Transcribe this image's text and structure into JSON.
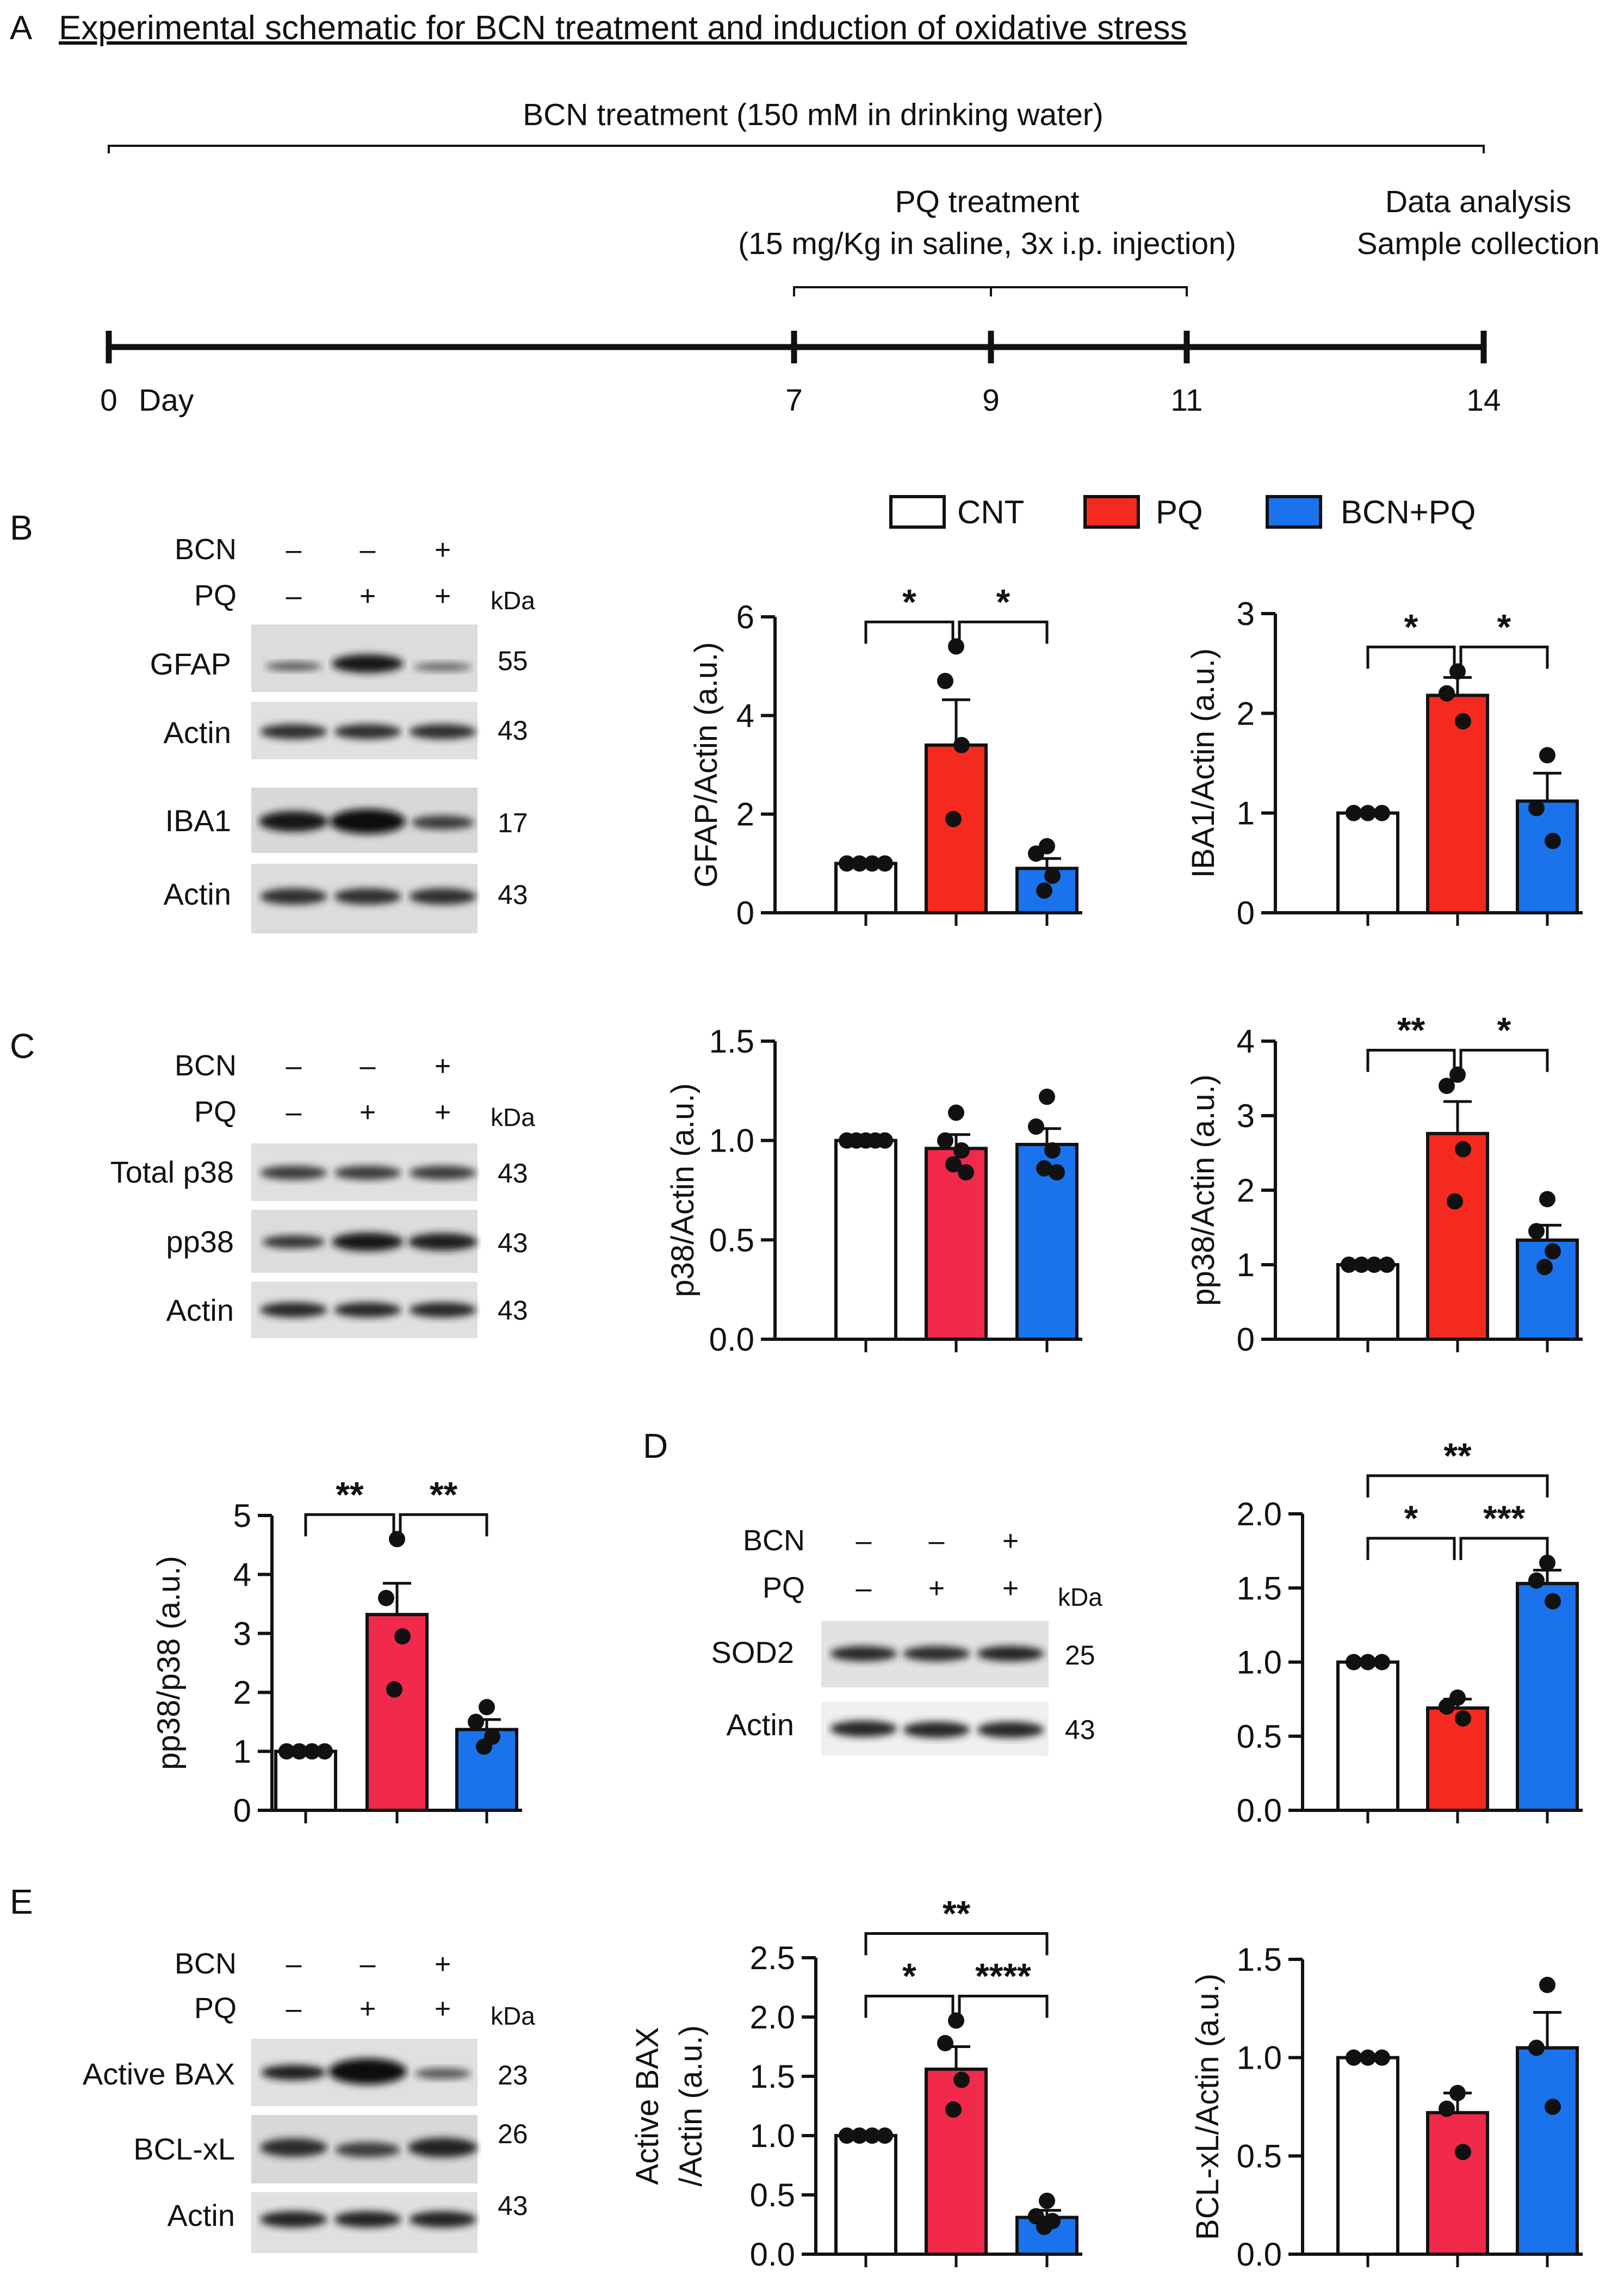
{
  "timeline": {
    "panel": "A",
    "title": "Experimental schematic for BCN treatment and induction of oxidative stress",
    "bcn_label": "BCN treatment (150 mM in drinking water)",
    "pq_line1": "PQ treatment",
    "pq_line2": "(15 mg/Kg in saline, 3x i.p. injection)",
    "end_line1": "Data analysis",
    "end_line2": "Sample collection",
    "days": [
      "0",
      "7",
      "9",
      "11",
      "14"
    ],
    "day_unit": "Day"
  },
  "legend": [
    {
      "label": "CNT",
      "color": "#ffffff"
    },
    {
      "label": "PQ",
      "color": "#f52a1e"
    },
    {
      "label": "BCN+PQ",
      "color": "#1a73ec"
    }
  ],
  "colors": {
    "cnt": "#ffffff",
    "pq": "#f52a1e",
    "pq_alt": "#f1294b",
    "bcn": "#1a73ec",
    "text": "#111111"
  },
  "blots": [
    {
      "panel": "B",
      "conditions": [
        {
          "name": "BCN",
          "signs": [
            "–",
            "–",
            "+"
          ]
        },
        {
          "name": "PQ",
          "signs": [
            "–",
            "+",
            "+"
          ]
        }
      ],
      "kda_label": "kDa",
      "bands": [
        {
          "protein": "GFAP",
          "kda": "55"
        },
        {
          "protein": "Actin",
          "kda": "43"
        },
        {
          "protein": "IBA1",
          "kda": "17"
        },
        {
          "protein": "Actin",
          "kda": "43"
        }
      ]
    },
    {
      "panel": "C",
      "conditions": [
        {
          "name": "BCN",
          "signs": [
            "–",
            "–",
            "+"
          ]
        },
        {
          "name": "PQ",
          "signs": [
            "–",
            "+",
            "+"
          ]
        }
      ],
      "kda_label": "kDa",
      "bands": [
        {
          "protein": "Total p38",
          "kda": "43"
        },
        {
          "protein": "pp38",
          "kda": "43"
        },
        {
          "protein": "Actin",
          "kda": "43"
        }
      ]
    },
    {
      "panel": "D",
      "conditions": [
        {
          "name": "BCN",
          "signs": [
            "–",
            "–",
            "+"
          ]
        },
        {
          "name": "PQ",
          "signs": [
            "–",
            "+",
            "+"
          ]
        }
      ],
      "kda_label": "kDa",
      "bands": [
        {
          "protein": "SOD2",
          "kda": "25"
        },
        {
          "protein": "Actin",
          "kda": "43"
        }
      ]
    },
    {
      "panel": "E",
      "conditions": [
        {
          "name": "BCN",
          "signs": [
            "–",
            "–",
            "+"
          ]
        },
        {
          "name": "PQ",
          "signs": [
            "–",
            "+",
            "+"
          ]
        }
      ],
      "kda_label": "kDa",
      "bands": [
        {
          "protein": "Active BAX",
          "kda": "23"
        },
        {
          "protein": "BCL-xL",
          "kda": "26"
        },
        {
          "protein": "Actin",
          "kda": "43"
        }
      ]
    }
  ],
  "chart_data": [
    {
      "id": "gfap",
      "type": "bar",
      "ylabel": [
        "GFAP/Actin (a.u.)"
      ],
      "ylim": [
        0,
        6
      ],
      "yticks": [
        "0",
        "2",
        "4",
        "6"
      ],
      "categories": [
        "CNT",
        "PQ",
        "BCN+PQ"
      ],
      "values": [
        1.0,
        3.4,
        0.9
      ],
      "errors": [
        0,
        0.92,
        0.2
      ],
      "points": [
        [
          1,
          1,
          1,
          1
        ],
        [
          5.4,
          4.7,
          3.4,
          1.9
        ],
        [
          1.35,
          1.2,
          0.75,
          0.45
        ]
      ],
      "significance": [
        {
          "from": 0,
          "to": 1,
          "label": "*"
        },
        {
          "from": 1,
          "to": 2,
          "label": "*"
        }
      ]
    },
    {
      "id": "iba1",
      "type": "bar",
      "ylabel": [
        "IBA1/Actin (a.u.)"
      ],
      "ylim": [
        0,
        3
      ],
      "yticks": [
        "0",
        "1",
        "2",
        "3"
      ],
      "categories": [
        "CNT",
        "PQ",
        "BCN+PQ"
      ],
      "values": [
        1.0,
        2.18,
        1.12
      ],
      "errors": [
        0,
        0.18,
        0.28
      ],
      "points": [
        [
          1,
          1,
          1
        ],
        [
          2.42,
          2.2,
          1.92
        ],
        [
          1.58,
          1.05,
          0.72
        ]
      ],
      "significance": [
        {
          "from": 0,
          "to": 1,
          "label": "*"
        },
        {
          "from": 1,
          "to": 2,
          "label": "*"
        }
      ]
    },
    {
      "id": "p38",
      "type": "bar",
      "ylabel": [
        "p38/Actin (a.u.)"
      ],
      "ylim": [
        0,
        1.5
      ],
      "yticks": [
        "0.0",
        "0.5",
        "1.0",
        "1.5"
      ],
      "categories": [
        "CNT",
        "PQ",
        "BCN+PQ"
      ],
      "values": [
        1.0,
        0.96,
        0.98
      ],
      "errors": [
        0,
        0.07,
        0.08
      ],
      "points": [
        [
          1,
          1,
          1,
          1,
          1
        ],
        [
          1.14,
          1.0,
          0.95,
          0.88,
          0.84
        ],
        [
          1.22,
          1.07,
          0.95,
          0.86,
          0.84
        ]
      ],
      "significance": []
    },
    {
      "id": "pp38_actin",
      "type": "bar",
      "ylabel": [
        "pp38/Actin (a.u.)"
      ],
      "ylim": [
        0,
        4
      ],
      "yticks": [
        "0",
        "1",
        "2",
        "3",
        "4"
      ],
      "categories": [
        "CNT",
        "PQ",
        "BCN+PQ"
      ],
      "values": [
        1.0,
        2.76,
        1.33
      ],
      "errors": [
        0,
        0.43,
        0.2
      ],
      "points": [
        [
          1,
          1,
          1,
          1
        ],
        [
          3.55,
          3.4,
          2.55,
          1.85
        ],
        [
          1.88,
          1.45,
          1.18,
          0.97
        ]
      ],
      "significance": [
        {
          "from": 0,
          "to": 1,
          "label": "**"
        },
        {
          "from": 1,
          "to": 2,
          "label": "*"
        }
      ]
    },
    {
      "id": "pp38_p38",
      "type": "bar",
      "ylabel": [
        "pp38/p38 (a.u.)"
      ],
      "ylim": [
        0,
        5
      ],
      "yticks": [
        "0",
        "1",
        "2",
        "3",
        "4",
        "5"
      ],
      "categories": [
        "CNT",
        "PQ",
        "BCN+PQ"
      ],
      "values": [
        1.0,
        3.32,
        1.37
      ],
      "errors": [
        0,
        0.53,
        0.17
      ],
      "points": [
        [
          1,
          1,
          1,
          1
        ],
        [
          4.6,
          3.6,
          2.95,
          2.05
        ],
        [
          1.75,
          1.5,
          1.25,
          1.08
        ]
      ],
      "significance": [
        {
          "from": 0,
          "to": 1,
          "label": "**"
        },
        {
          "from": 1,
          "to": 2,
          "label": "**"
        }
      ]
    },
    {
      "id": "sod2",
      "type": "bar",
      "ylabel": [],
      "ylim": [
        0,
        2
      ],
      "yticks": [
        "0.0",
        "0.5",
        "1.0",
        "1.5",
        "2.0"
      ],
      "categories": [
        "CNT",
        "PQ",
        "BCN+PQ"
      ],
      "values": [
        1.0,
        0.69,
        1.53
      ],
      "errors": [
        0,
        0.06,
        0.09
      ],
      "points": [
        [
          1,
          1,
          1
        ],
        [
          0.76,
          0.7,
          0.62
        ],
        [
          1.67,
          1.55,
          1.41
        ]
      ],
      "significance": [
        {
          "from": 0,
          "to": 1,
          "label": "*"
        },
        {
          "from": 1,
          "to": 2,
          "label": "***"
        },
        {
          "from": 0,
          "to": 2,
          "label": "**"
        }
      ]
    },
    {
      "id": "bax",
      "type": "bar",
      "ylabel": [
        "Active BAX",
        "/Actin (a.u.)"
      ],
      "ylim": [
        0,
        2.5
      ],
      "yticks": [
        "0.0",
        "0.5",
        "1.0",
        "1.5",
        "2.0",
        "2.5"
      ],
      "categories": [
        "CNT",
        "PQ",
        "BCN+PQ"
      ],
      "values": [
        1.0,
        1.56,
        0.31
      ],
      "errors": [
        0,
        0.19,
        0.06
      ],
      "points": [
        [
          1,
          1,
          1,
          1
        ],
        [
          1.97,
          1.78,
          1.47,
          1.22
        ],
        [
          0.45,
          0.32,
          0.28,
          0.23
        ]
      ],
      "significance": [
        {
          "from": 0,
          "to": 1,
          "label": "*"
        },
        {
          "from": 1,
          "to": 2,
          "label": "****"
        },
        {
          "from": 0,
          "to": 2,
          "label": "**"
        }
      ]
    },
    {
      "id": "bclxl",
      "type": "bar",
      "ylabel": [
        "BCL-xL/Actin (a.u.)"
      ],
      "ylim": [
        0,
        1.5
      ],
      "yticks": [
        "0.0",
        "0.5",
        "1.0",
        "1.5"
      ],
      "categories": [
        "CNT",
        "PQ",
        "BCN+PQ"
      ],
      "values": [
        1.0,
        0.72,
        1.05
      ],
      "errors": [
        0,
        0.1,
        0.18
      ],
      "points": [
        [
          1,
          1,
          1
        ],
        [
          0.82,
          0.74,
          0.52
        ],
        [
          1.37,
          1.05,
          0.75
        ]
      ],
      "significance": []
    }
  ]
}
